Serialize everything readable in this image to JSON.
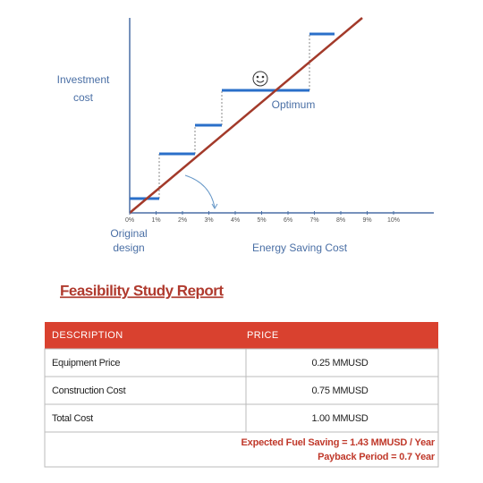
{
  "diagram": {
    "y_label": [
      "Investment",
      "cost"
    ],
    "xticks": [
      "0%",
      "1%",
      "2%",
      "3%",
      "4%",
      "5%",
      "6%",
      "7%",
      "8%",
      "9%",
      "10%"
    ],
    "origin_label": [
      "Original",
      "design"
    ],
    "x_label": "Energy Saving Cost",
    "optimum_label": "Optimum"
  },
  "report_title": "Feasibility Study Report",
  "table": {
    "header": [
      "DESCRIPTION",
      "PRICE"
    ],
    "rows": [
      [
        "Equipment Price",
        "0.25 MMUSD"
      ],
      [
        "Construction Cost",
        "0.75 MMUSD"
      ],
      [
        "Total Cost",
        "1.00 MMUSD"
      ]
    ],
    "footer": [
      "Expected Fuel Saving = 1.43 MMUSD / Year",
      "Payback Period = 0.7 Year"
    ]
  }
}
